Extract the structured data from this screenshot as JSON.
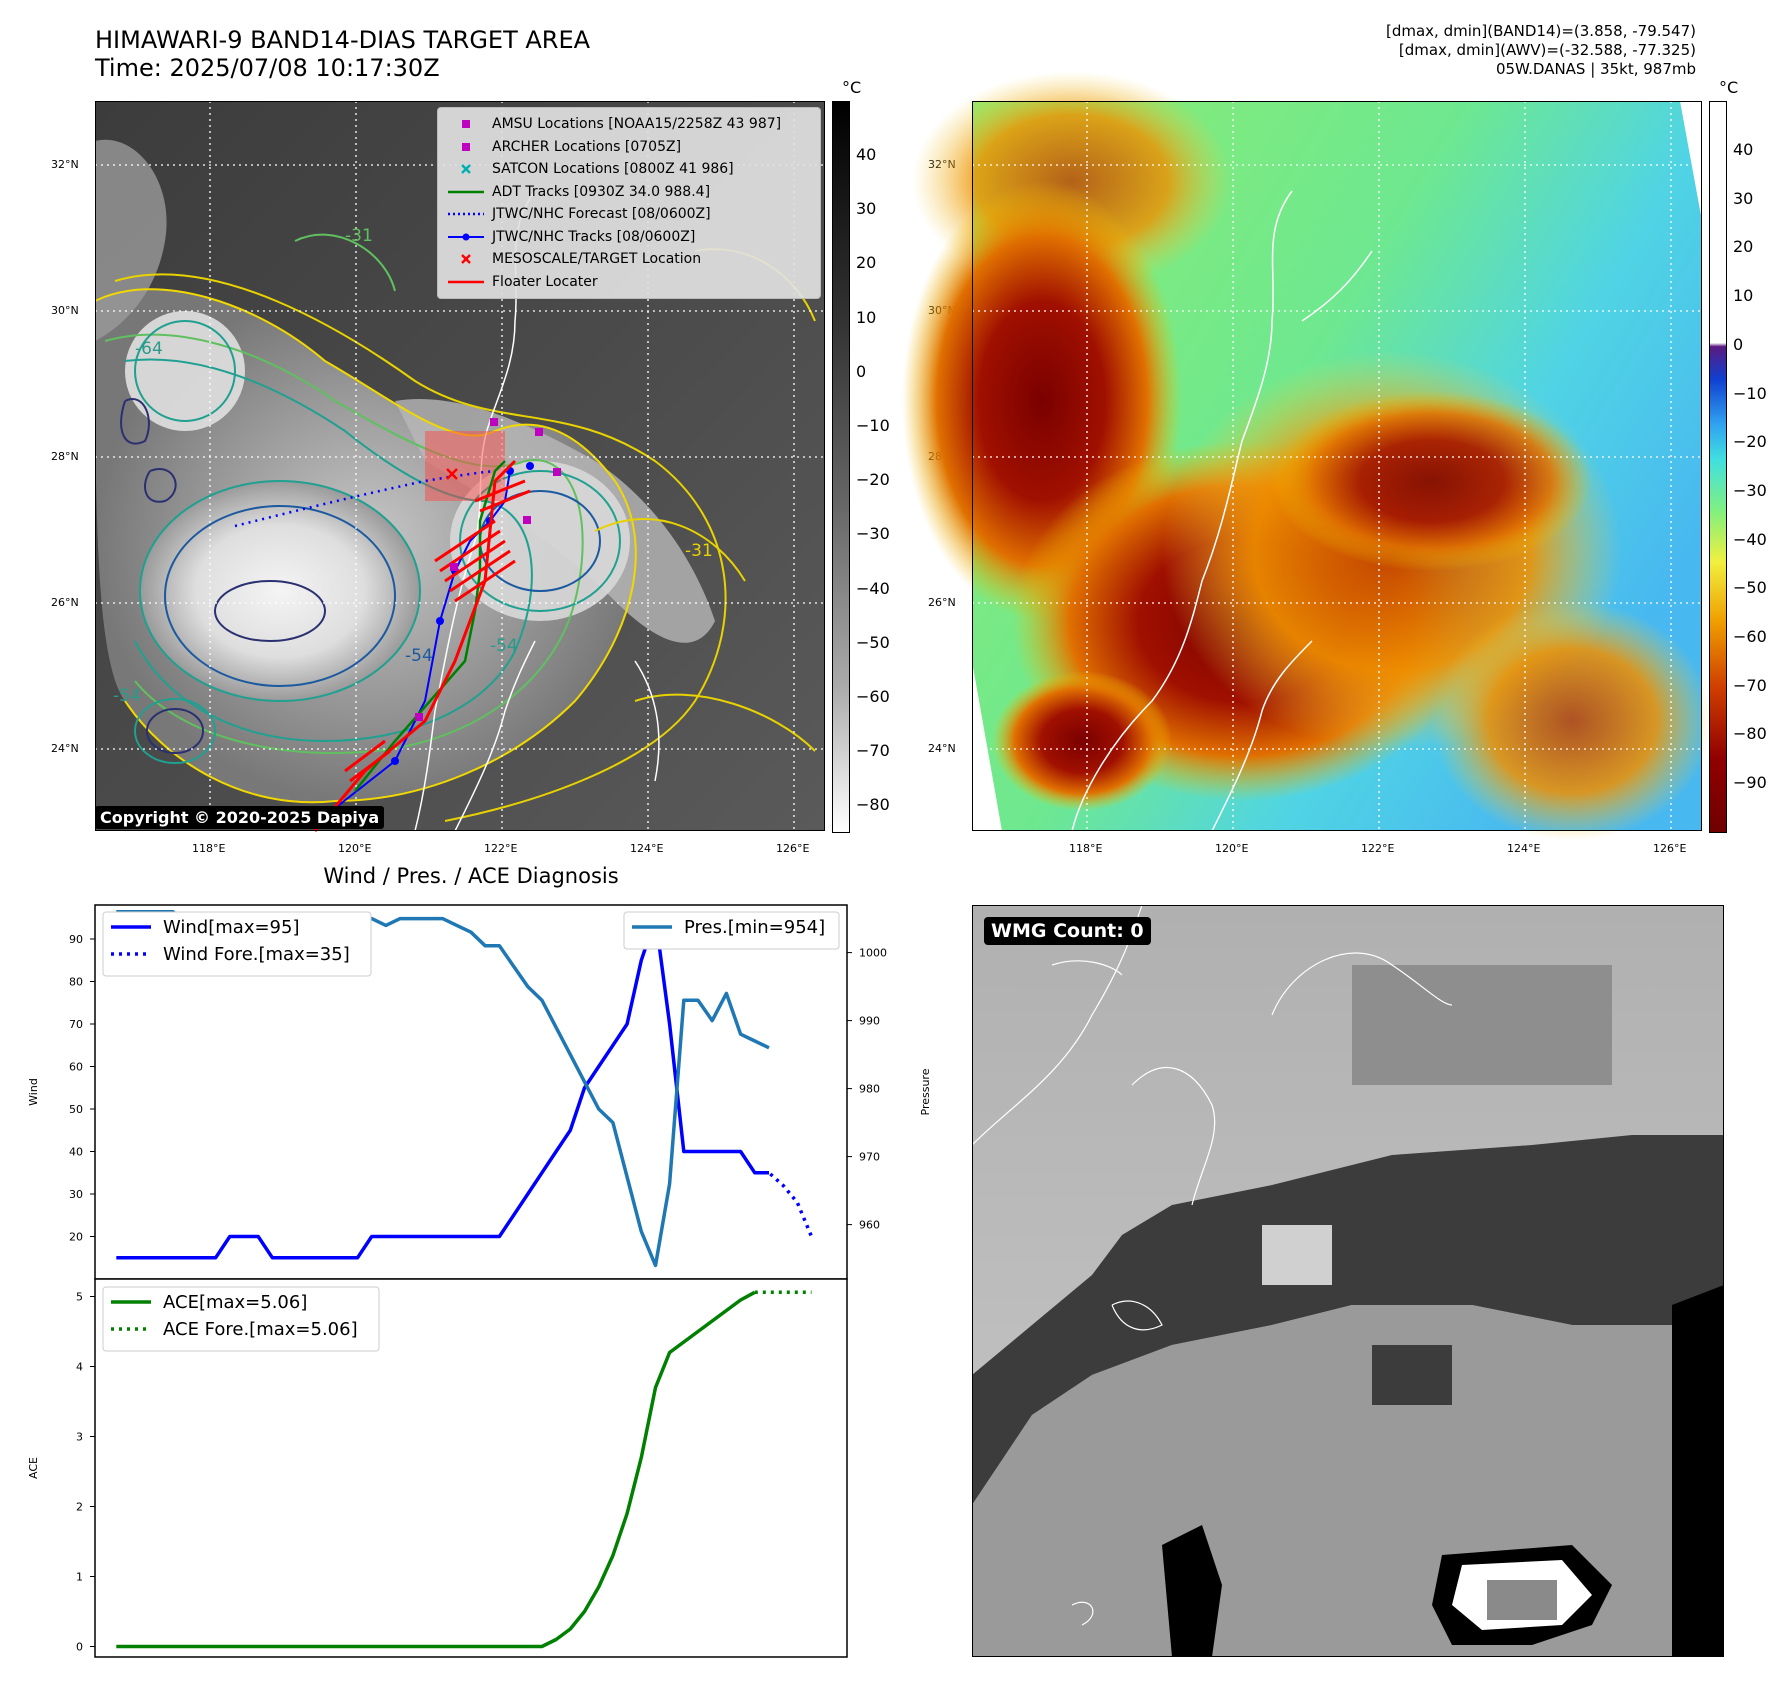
{
  "header": {
    "title_line1": "HIMAWARI-9 BAND14-DIAS TARGET AREA",
    "title_line2": "Time: 2025/07/08 10:17:30Z",
    "info_line1": "[dmax, dmin](BAND14)=(3.858, -79.547)",
    "info_line2": "[dmax, dmin](AWV)=(-32.588, -77.325)",
    "info_line3": "05W.DANAS | 35kt, 987mb"
  },
  "map_axes": {
    "lat_ticks": [
      "32°N",
      "30°N",
      "28°N",
      "26°N",
      "24°N"
    ],
    "lon_ticks": [
      "118°E",
      "120°E",
      "122°E",
      "124°E",
      "126°E"
    ]
  },
  "left_map": {
    "copyright": "Copyright © 2020-2025 Dapiya",
    "contour_labels": [
      "-64",
      "-54",
      "-31",
      "-54",
      "-31",
      "-54"
    ],
    "legend": [
      {
        "label": "AMSU Locations [NOAA15/2258Z 43 987]",
        "color": "#c000c0",
        "marker": "square"
      },
      {
        "label": "ARCHER Locations [0705Z]",
        "color": "#c000c0",
        "marker": "square"
      },
      {
        "label": "SATCON Locations [0800Z 41 986]",
        "color": "#00b0b0",
        "marker": "x"
      },
      {
        "label": "ADT Tracks [0930Z 34.0 988.4]",
        "color": "#008000",
        "marker": "line"
      },
      {
        "label": "JTWC/NHC Forecast [08/0600Z]",
        "color": "#0000ff",
        "marker": "dotted"
      },
      {
        "label": "JTWC/NHC Tracks [08/0600Z]",
        "color": "#0000ff",
        "marker": "line-dot"
      },
      {
        "label": "MESOSCALE/TARGET Location",
        "color": "#ff0000",
        "marker": "x"
      },
      {
        "label": "Floater Locater",
        "color": "#ff0000",
        "marker": "line"
      }
    ],
    "colorbar": {
      "unit": "°C",
      "ticks": [
        "40",
        "30",
        "20",
        "10",
        "0",
        "−10",
        "−20",
        "−30",
        "−40",
        "−50",
        "−60",
        "−70",
        "−80"
      ]
    }
  },
  "right_map": {
    "colorbar": {
      "unit": "°C",
      "ticks": [
        "40",
        "30",
        "20",
        "10",
        "0",
        "−10",
        "−20",
        "−30",
        "−40",
        "−50",
        "−60",
        "−70",
        "−80",
        "−90"
      ]
    }
  },
  "wmg": {
    "label": "WMG Count: 0"
  },
  "diagnosis": {
    "title": "Wind / Pres. / ACE Diagnosis"
  },
  "chart_data": [
    {
      "type": "line",
      "title": "Wind / Pres. / ACE Diagnosis",
      "ylabel": "Wind",
      "y2label": "Pressure",
      "ylim": [
        10,
        98
      ],
      "y2lim": [
        952,
        1007
      ],
      "yticks": [
        20,
        30,
        40,
        50,
        60,
        70,
        80,
        90
      ],
      "y2ticks": [
        960,
        970,
        980,
        990,
        1000
      ],
      "series": [
        {
          "name": "Wind[max=95]",
          "axis": "left",
          "color": "#0000ff",
          "style": "solid",
          "x": [
            0,
            1,
            2,
            3,
            4,
            5,
            6,
            7,
            8,
            9,
            10,
            11,
            12,
            13,
            14,
            15,
            16,
            17,
            18,
            19,
            20,
            21,
            22,
            23,
            24,
            25,
            26,
            27,
            28,
            29,
            30,
            31,
            32,
            33,
            34,
            35,
            36,
            37,
            38,
            39,
            40,
            41,
            42,
            43,
            44,
            45,
            46,
            47,
            48
          ],
          "values": [
            15,
            15,
            15,
            15,
            15,
            15,
            15,
            15,
            20,
            20,
            20,
            15,
            15,
            15,
            15,
            15,
            15,
            15,
            20,
            20,
            20,
            20,
            20,
            20,
            20,
            20,
            20,
            20,
            25,
            30,
            35,
            40,
            45,
            55,
            60,
            65,
            70,
            85,
            95,
            70,
            40,
            40,
            40,
            40,
            40,
            35,
            35,
            null,
            null
          ]
        },
        {
          "name": "Wind Fore.[max=35]",
          "axis": "left",
          "color": "#0000ff",
          "style": "dotted",
          "x": [
            45,
            46,
            47,
            48,
            49
          ],
          "values": [
            35,
            35,
            32,
            28,
            20
          ]
        },
        {
          "name": "Pres.[min=954]",
          "axis": "right",
          "color": "#1f77b4",
          "style": "solid",
          "x": [
            0,
            1,
            2,
            3,
            4,
            5,
            6,
            7,
            8,
            9,
            10,
            11,
            12,
            13,
            14,
            15,
            16,
            17,
            18,
            19,
            20,
            21,
            22,
            23,
            24,
            25,
            26,
            27,
            28,
            29,
            30,
            31,
            32,
            33,
            34,
            35,
            36,
            37,
            38,
            39,
            40,
            41,
            42,
            43,
            44,
            45,
            46
          ],
          "values": [
            1006,
            1006,
            1006,
            1006,
            1006,
            1004,
            1004,
            1004,
            1004,
            1004,
            1004,
            1004,
            1005,
            1005,
            1005,
            1005,
            1005,
            1005,
            1005,
            1004,
            1005,
            1005,
            1005,
            1005,
            1004,
            1003,
            1001,
            1001,
            998,
            995,
            993,
            989,
            985,
            981,
            977,
            975,
            967,
            959,
            954,
            966,
            993,
            993,
            990,
            994,
            988,
            987,
            986
          ]
        }
      ]
    },
    {
      "type": "line",
      "ylabel": "ACE",
      "ylim": [
        -0.15,
        5.25
      ],
      "yticks": [
        0,
        1,
        2,
        3,
        4,
        5
      ],
      "series": [
        {
          "name": "ACE[max=5.06]",
          "color": "#008000",
          "style": "solid",
          "x": [
            0,
            5,
            10,
            15,
            20,
            25,
            30,
            31,
            32,
            33,
            34,
            35,
            36,
            37,
            38,
            39,
            40,
            41,
            42,
            43,
            44,
            45
          ],
          "values": [
            0,
            0,
            0,
            0,
            0,
            0,
            0,
            0.1,
            0.25,
            0.5,
            0.85,
            1.3,
            1.9,
            2.7,
            3.7,
            4.2,
            4.35,
            4.5,
            4.65,
            4.8,
            4.95,
            5.06
          ]
        },
        {
          "name": "ACE Fore.[max=5.06]",
          "color": "#008000",
          "style": "dotted",
          "x": [
            45,
            46,
            47,
            48,
            49
          ],
          "values": [
            5.06,
            5.06,
            5.06,
            5.06,
            5.06
          ]
        }
      ]
    }
  ]
}
